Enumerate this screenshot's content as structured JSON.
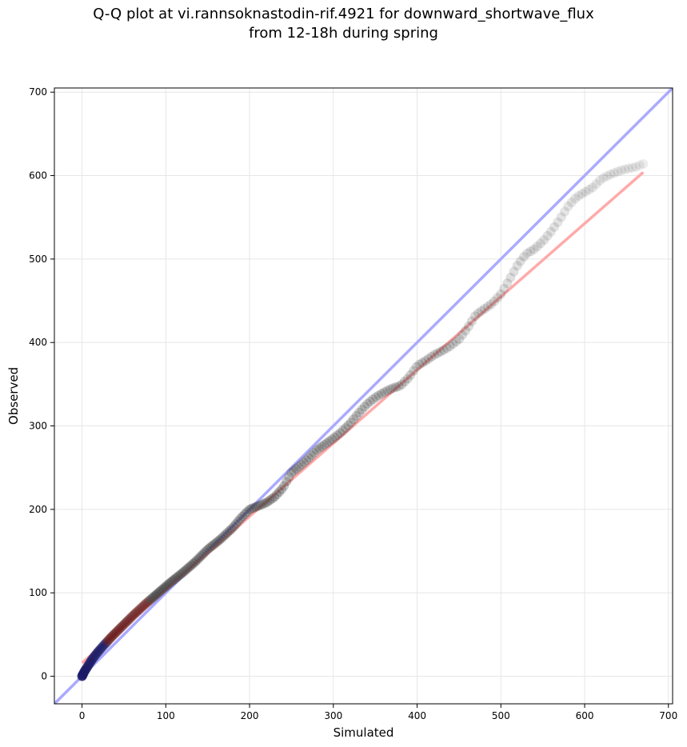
{
  "figure": {
    "title_line1": "Q-Q plot at vi.rannsoknastodin-rif.4921 for downward_shortwave_flux",
    "title_line2": "from 12-18h during spring"
  },
  "chart_data": {
    "type": "scatter",
    "title": "Q-Q plot at vi.rannsoknastodin-rif.4921 for downward_shortwave_flux from 12-18h during spring",
    "xlabel": "Simulated",
    "ylabel": "Observed",
    "xlim": [
      -33,
      705
    ],
    "ylim": [
      -33,
      705
    ],
    "xticks": [
      0,
      100,
      200,
      300,
      400,
      500,
      600,
      700
    ],
    "yticks": [
      0,
      100,
      200,
      300,
      400,
      500,
      600,
      700
    ],
    "grid": true,
    "legend": "none",
    "colors": {
      "points": "#333333",
      "identity_line": "#aaaaff",
      "fit_line": "#ffaaaa",
      "dense_points_low": "#1a1a66",
      "dense_points_mid": "#661a1a"
    },
    "identity_line": {
      "x": [
        -33,
        705
      ],
      "y": [
        -33,
        705
      ]
    },
    "fit_line": {
      "x": [
        0,
        670
      ],
      "y": [
        16,
        604
      ]
    },
    "quantile_path": {
      "x": [
        0,
        1,
        2,
        3,
        5,
        8,
        12,
        18,
        25,
        35,
        45,
        60,
        75,
        90,
        105,
        120,
        135,
        150,
        165,
        180,
        190,
        200,
        210,
        220,
        230,
        240,
        250,
        260,
        270,
        280,
        290,
        300,
        310,
        320,
        330,
        340,
        350,
        360,
        370,
        380,
        390,
        400,
        410,
        420,
        430,
        440,
        450,
        460,
        470,
        480,
        490,
        500,
        510,
        520,
        530,
        540,
        550,
        560,
        570,
        580,
        590,
        600,
        610,
        620,
        630,
        640,
        650,
        660,
        670
      ],
      "y": [
        0,
        2,
        4,
        6,
        9,
        14,
        20,
        28,
        36,
        47,
        57,
        72,
        86,
        99,
        112,
        124,
        137,
        152,
        164,
        178,
        190,
        200,
        204,
        208,
        215,
        226,
        244,
        252,
        261,
        271,
        278,
        285,
        293,
        303,
        315,
        326,
        334,
        340,
        345,
        348,
        358,
        372,
        378,
        385,
        390,
        396,
        404,
        417,
        433,
        440,
        447,
        458,
        475,
        493,
        506,
        512,
        521,
        533,
        547,
        563,
        574,
        580,
        586,
        596,
        601,
        605,
        608,
        610,
        614
      ]
    }
  }
}
